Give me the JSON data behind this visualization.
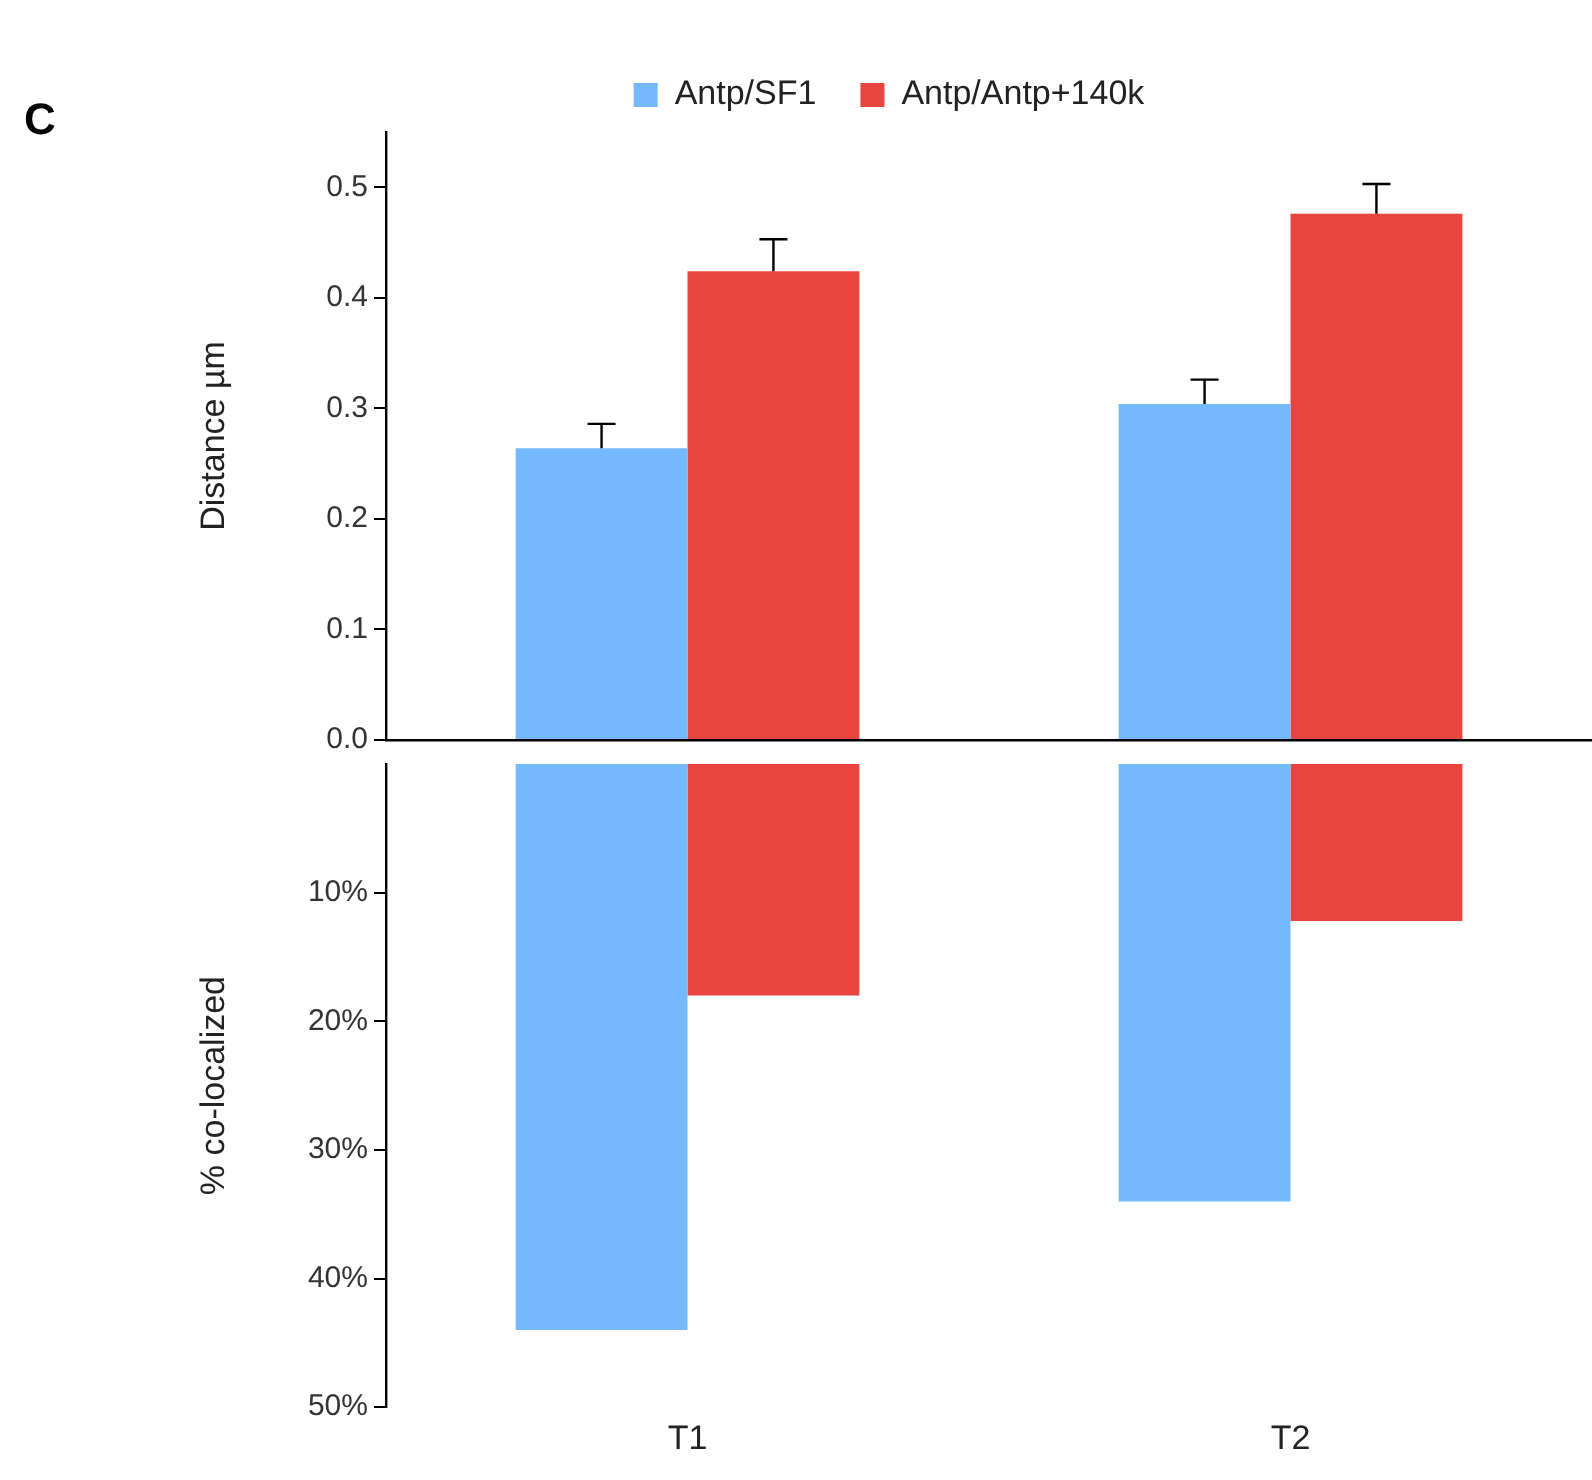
{
  "chart_data": [
    {
      "type": "bar",
      "ylabel": "Distance µm",
      "annotations": [
        "C"
      ],
      "categories": [
        null,
        null
      ],
      "legend": "top",
      "tick_labels": "y",
      "ylim": [
        0,
        0.55
      ],
      "yticks": [
        {
          "value": 0,
          "label": "0.0"
        },
        0.1,
        0.2,
        0.3,
        0.4,
        0.5
      ],
      "series": [
        {
          "name": "Antp/SF1",
          "color": "#74b9fb",
          "values": [
            0.264,
            0.304
          ],
          "errors": [
            [
              0.264,
              0.286
            ],
            [
              0.304,
              0.326
            ]
          ]
        },
        {
          "name": "Antp/Antp+140k",
          "color": "#e8453f",
          "values": [
            0.424,
            0.476
          ],
          "errors": [
            [
              0.424,
              0.453
            ],
            [
              0.476,
              0.503
            ]
          ]
        }
      ]
    },
    {
      "type": "bar",
      "ylabel": "% co-localized",
      "categories": [
        "T1",
        "T2"
      ],
      "ylim": [
        50,
        0
      ],
      "yticks": [
        {
          "value": 10,
          "label": "10%"
        },
        {
          "value": 20,
          "label": "20%"
        },
        {
          "value": 30,
          "label": "30%"
        },
        {
          "value": 40,
          "label": "40%"
        },
        {
          "value": 50,
          "label": "50%"
        }
      ],
      "series": [
        {
          "color": "#74b9fb",
          "values": [
            44,
            34
          ]
        },
        {
          "color": "#e8453f",
          "values": [
            18,
            12.2
          ]
        }
      ]
    }
  ]
}
